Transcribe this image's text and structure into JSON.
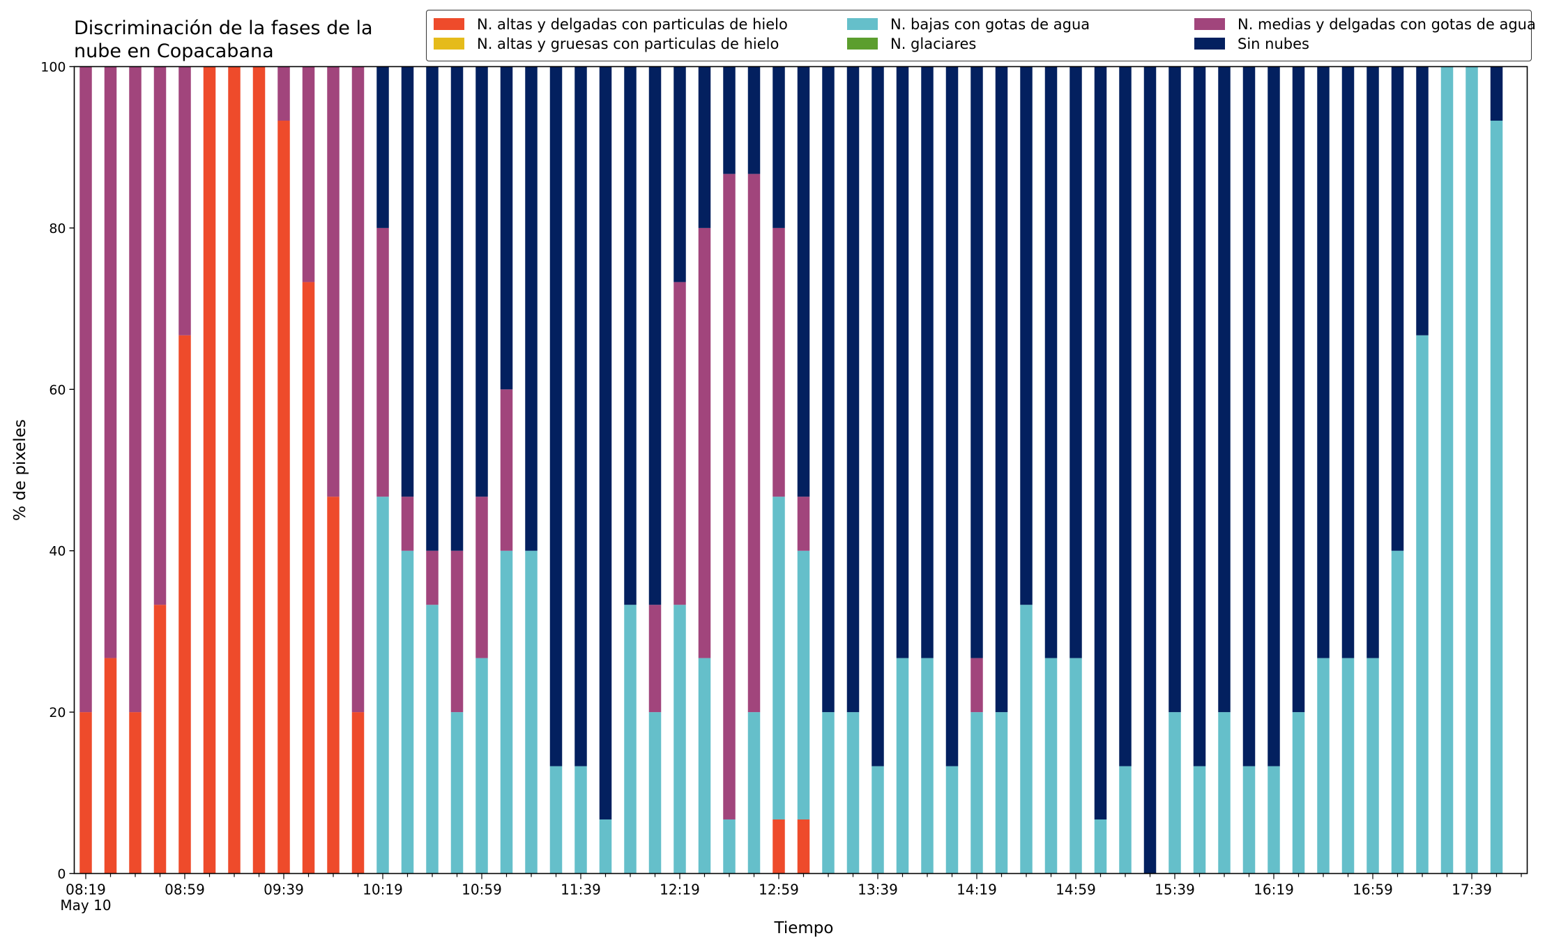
{
  "chart_data": {
    "type": "bar",
    "stacked": true,
    "title": "Discriminación de la fases de la nube en Copacabana",
    "title_lines": [
      "Discriminación de la fases de la",
      "nube en Copacabana"
    ],
    "xlabel": "Tiempo",
    "ylabel": "% de pixeles",
    "ylim": [
      0,
      100
    ],
    "yticks": [
      "0",
      "20",
      "40",
      "60",
      "80",
      "100"
    ],
    "x_date": "May 10",
    "x_tick_labels": [
      "08:19",
      "08:59",
      "09:39",
      "10:19",
      "10:59",
      "11:39",
      "12:19",
      "12:59",
      "13:39",
      "14:19",
      "14:59",
      "15:39",
      "16:19",
      "16:59",
      "17:39"
    ],
    "x_interval_minutes": 10,
    "grid": false,
    "legend_position": "top-right",
    "categories": [
      "08:19",
      "08:29",
      "08:39",
      "08:49",
      "08:59",
      "09:09",
      "09:19",
      "09:29",
      "09:39",
      "09:49",
      "09:59",
      "10:09",
      "10:19",
      "10:29",
      "10:39",
      "10:49",
      "10:59",
      "11:09",
      "11:19",
      "11:29",
      "11:39",
      "11:49",
      "11:59",
      "12:09",
      "12:19",
      "12:29",
      "12:39",
      "12:49",
      "12:59",
      "13:09",
      "13:19",
      "13:29",
      "13:39",
      "13:49",
      "13:59",
      "14:09",
      "14:19",
      "14:29",
      "14:39",
      "14:49",
      "14:59",
      "15:09",
      "15:19",
      "15:29",
      "15:39",
      "15:49",
      "15:59",
      "16:09",
      "16:19",
      "16:29",
      "16:39",
      "16:49",
      "16:59",
      "17:09",
      "17:19",
      "17:29",
      "17:39",
      "17:49"
    ],
    "series": [
      {
        "name": "N. altas y delgadas con particulas de hielo",
        "color": "#ee4b2b",
        "values": [
          20,
          26.7,
          20,
          33.3,
          66.7,
          100,
          100,
          100,
          93.3,
          73.3,
          46.7,
          20,
          0,
          0,
          0,
          0,
          0,
          0,
          0,
          0,
          0,
          0,
          0,
          0,
          0,
          0,
          0,
          0,
          6.7,
          6.7,
          0,
          0,
          0,
          0,
          0,
          0,
          0,
          0,
          0,
          0,
          0,
          0,
          0,
          0,
          0,
          0,
          0,
          0,
          0,
          0,
          0,
          0,
          0,
          0,
          0,
          0,
          0,
          0
        ]
      },
      {
        "name": "N. altas y gruesas con particulas de hielo",
        "color": "#e5bb1b",
        "values": [
          0,
          0,
          0,
          0,
          0,
          0,
          0,
          0,
          0,
          0,
          0,
          0,
          0,
          0,
          0,
          0,
          0,
          0,
          0,
          0,
          0,
          0,
          0,
          0,
          0,
          0,
          0,
          0,
          0,
          0,
          0,
          0,
          0,
          0,
          0,
          0,
          0,
          0,
          0,
          0,
          0,
          0,
          0,
          0,
          0,
          0,
          0,
          0,
          0,
          0,
          0,
          0,
          0,
          0,
          0,
          0,
          0,
          0
        ]
      },
      {
        "name": "N. bajas con gotas de agua",
        "color": "#65bfca",
        "values": [
          0,
          0,
          0,
          0,
          0,
          0,
          0,
          0,
          0,
          0,
          0,
          0,
          46.7,
          40,
          33.3,
          20,
          26.7,
          40,
          40,
          13.3,
          13.3,
          6.7,
          33.3,
          20,
          33.3,
          26.7,
          6.7,
          20,
          40,
          33.3,
          20,
          20,
          13.3,
          26.7,
          26.7,
          13.3,
          20,
          20,
          33.3,
          26.7,
          26.7,
          6.7,
          13.3,
          0,
          20,
          13.3,
          20,
          13.3,
          13.3,
          20,
          26.7,
          26.7,
          26.7,
          40,
          66.7,
          100,
          100,
          93.3
        ]
      },
      {
        "name": "N. glaciares",
        "color": "#5c9e2e",
        "values": [
          0,
          0,
          0,
          0,
          0,
          0,
          0,
          0,
          0,
          0,
          0,
          0,
          0,
          0,
          0,
          0,
          0,
          0,
          0,
          0,
          0,
          0,
          0,
          0,
          0,
          0,
          0,
          0,
          0,
          0,
          0,
          0,
          0,
          0,
          0,
          0,
          0,
          0,
          0,
          0,
          0,
          0,
          0,
          0,
          0,
          0,
          0,
          0,
          0,
          0,
          0,
          0,
          0,
          0,
          0,
          0,
          0,
          0
        ]
      },
      {
        "name": "N. medias y delgadas con gotas de agua",
        "color": "#a1457c",
        "values": [
          80,
          73.3,
          80,
          66.7,
          33.3,
          0,
          0,
          0,
          6.7,
          26.7,
          53.3,
          80,
          33.3,
          6.7,
          6.7,
          20,
          20,
          20,
          0,
          0,
          0,
          0,
          0,
          13.3,
          40,
          53.3,
          80,
          66.7,
          33.3,
          6.7,
          0,
          0,
          0,
          0,
          0,
          0,
          6.7,
          0,
          0,
          0,
          0,
          0,
          0,
          0,
          0,
          0,
          0,
          0,
          0,
          0,
          0,
          0,
          0,
          0,
          0,
          0,
          0,
          0
        ]
      },
      {
        "name": "Sin nubes",
        "color": "#03205f",
        "values": [
          0,
          0,
          0,
          0,
          0,
          0,
          0,
          0,
          0,
          0,
          0,
          0,
          20,
          53.3,
          60,
          60,
          53.3,
          40,
          60,
          86.7,
          86.7,
          93.3,
          66.7,
          66.7,
          26.7,
          20,
          13.3,
          13.3,
          20,
          53.3,
          80,
          80,
          86.7,
          73.3,
          73.3,
          86.7,
          73.3,
          80,
          66.7,
          73.3,
          73.3,
          93.3,
          86.7,
          100,
          80,
          86.7,
          80,
          86.7,
          86.7,
          80,
          73.3,
          73.3,
          73.3,
          60,
          33.3,
          0,
          0,
          6.7
        ]
      }
    ]
  }
}
